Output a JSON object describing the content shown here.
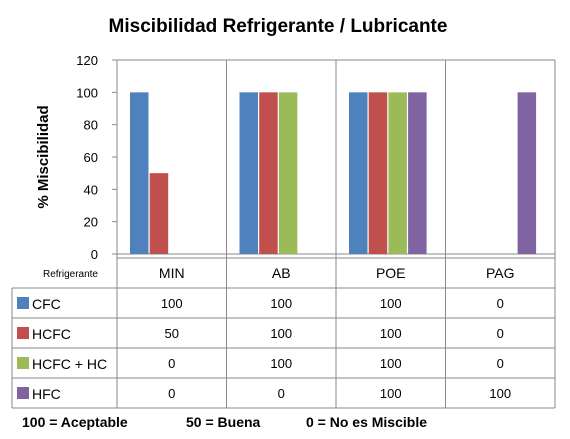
{
  "chart_data": {
    "type": "bar",
    "title": "Miscibilidad Refrigerante / Lubricante",
    "ylabel": "% Miscibilidad",
    "row_header": "Refrigerante",
    "categories": [
      "MIN",
      "AB",
      "POE",
      "PAG"
    ],
    "yticks": [
      "0",
      "20",
      "40",
      "60",
      "80",
      "100",
      "120"
    ],
    "ylim": [
      0,
      120
    ],
    "grid": false,
    "series": [
      {
        "name": "CFC",
        "color": "#4F81BD",
        "values": [
          100,
          100,
          100,
          0
        ]
      },
      {
        "name": "HCFC",
        "color": "#C0504D",
        "values": [
          50,
          100,
          100,
          0
        ]
      },
      {
        "name": "HCFC + HC",
        "color": "#9BBB59",
        "values": [
          0,
          100,
          100,
          0
        ]
      },
      {
        "name": "HFC",
        "color": "#8064A2",
        "values": [
          0,
          0,
          100,
          100
        ]
      }
    ],
    "footnote": [
      "100 = Aceptable",
      "50 = Buena",
      "0 = No es Miscible"
    ]
  }
}
